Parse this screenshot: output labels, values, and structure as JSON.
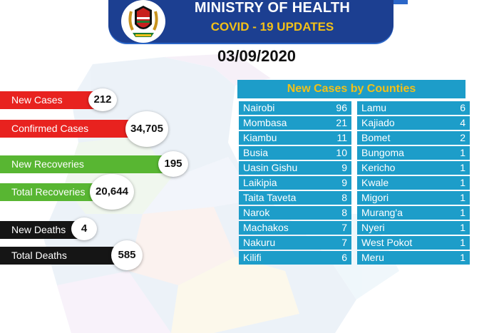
{
  "header": {
    "title": "MINISTRY OF HEALTH",
    "subtitle": "COVID - 19 UPDATES",
    "date": "03/09/2020"
  },
  "stats": [
    {
      "label": "New Cases",
      "value": "212",
      "color": "#e8221f"
    },
    {
      "label": "Confirmed Cases",
      "value": "34,705",
      "color": "#e8221f"
    },
    {
      "label": "New Recoveries",
      "value": "195",
      "color": "#58b632"
    },
    {
      "label": "Total Recoveries",
      "value": "20,644",
      "color": "#58b632"
    },
    {
      "label": "New Deaths",
      "value": "4",
      "color": "#151515"
    },
    {
      "label": "Total Deaths",
      "value": "585",
      "color": "#151515"
    }
  ],
  "counties": {
    "title": "New Cases by Counties",
    "left": [
      {
        "name": "Nairobi",
        "value": "96"
      },
      {
        "name": "Mombasa",
        "value": "21"
      },
      {
        "name": "Kiambu",
        "value": "11"
      },
      {
        "name": "Busia",
        "value": "10"
      },
      {
        "name": "Uasin Gishu",
        "value": "9"
      },
      {
        "name": "Laikipia",
        "value": "9"
      },
      {
        "name": "Taita Taveta",
        "value": "8"
      },
      {
        "name": "Narok",
        "value": "8"
      },
      {
        "name": "Machakos",
        "value": "7"
      },
      {
        "name": "Nakuru",
        "value": "7"
      },
      {
        "name": "Kilifi",
        "value": "6"
      }
    ],
    "right": [
      {
        "name": "Lamu",
        "value": "6"
      },
      {
        "name": "Kajiado",
        "value": "4"
      },
      {
        "name": "Bomet",
        "value": "2"
      },
      {
        "name": "Bungoma",
        "value": "1"
      },
      {
        "name": "Kericho",
        "value": "1"
      },
      {
        "name": "Kwale",
        "value": "1"
      },
      {
        "name": "Migori",
        "value": "1"
      },
      {
        "name": "Murang'a",
        "value": "1"
      },
      {
        "name": "Nyeri",
        "value": "1"
      },
      {
        "name": "West Pokot",
        "value": "1"
      },
      {
        "name": "Meru",
        "value": "1"
      }
    ]
  },
  "colors": {
    "banner": "#1c3f91",
    "accent_yellow": "#f2c018",
    "table_blue": "#1d9dc9"
  },
  "icons": {
    "emblem": "kenya-coat-of-arms-icon"
  }
}
